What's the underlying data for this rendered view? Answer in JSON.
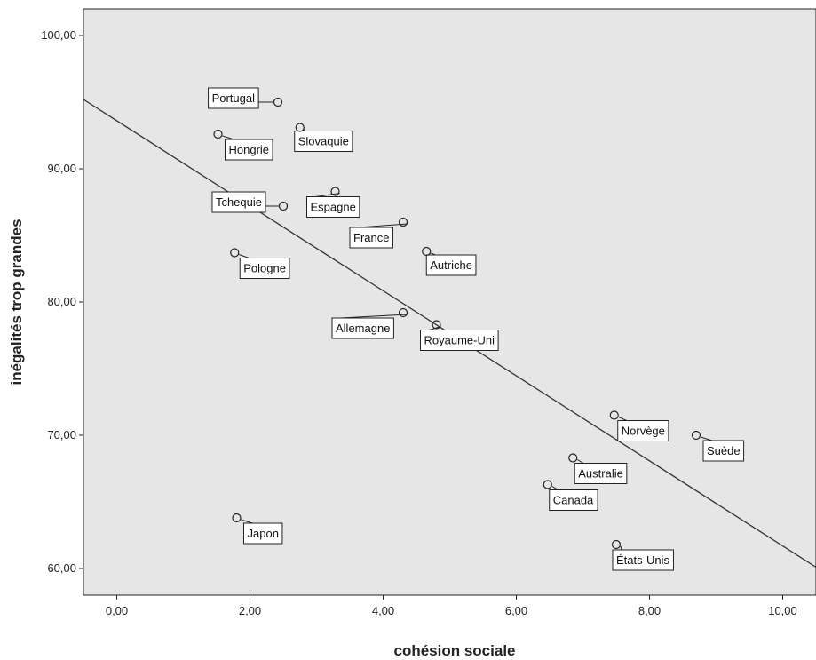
{
  "chart_data": {
    "type": "scatter",
    "title": "",
    "xlabel": "cohésion sociale",
    "ylabel": "inégalités trop grandes",
    "xlim": [
      -0.5,
      10.5
    ],
    "ylim": [
      58.0,
      102.0
    ],
    "x_ticks": [
      0,
      2,
      4,
      6,
      8,
      10
    ],
    "y_ticks": [
      60,
      70,
      80,
      90,
      100
    ],
    "x_tick_labels": [
      "0,00",
      "2,00",
      "4,00",
      "6,00",
      "8,00",
      "10,00"
    ],
    "y_tick_labels": [
      "60,00",
      "70,00",
      "80,00",
      "90,00",
      "100,00"
    ],
    "grid": false,
    "background_color": "#e6e6e6",
    "points": [
      {
        "label": "Portugal",
        "x": 2.42,
        "y": 95.0
      },
      {
        "label": "Hongrie",
        "x": 1.52,
        "y": 92.6
      },
      {
        "label": "Slovaquie",
        "x": 2.75,
        "y": 93.1
      },
      {
        "label": "Tchequie",
        "x": 2.5,
        "y": 87.2
      },
      {
        "label": "Espagne",
        "x": 3.28,
        "y": 88.3
      },
      {
        "label": "France",
        "x": 4.3,
        "y": 86.0
      },
      {
        "label": "Pologne",
        "x": 1.77,
        "y": 83.7
      },
      {
        "label": "Autriche",
        "x": 4.65,
        "y": 83.8
      },
      {
        "label": "Allemagne",
        "x": 4.3,
        "y": 79.2
      },
      {
        "label": "Royaume-Uni",
        "x": 4.8,
        "y": 78.3
      },
      {
        "label": "Norvège",
        "x": 7.47,
        "y": 71.5
      },
      {
        "label": "Suède",
        "x": 8.7,
        "y": 70.0
      },
      {
        "label": "Australie",
        "x": 6.85,
        "y": 68.3
      },
      {
        "label": "Canada",
        "x": 6.47,
        "y": 66.3
      },
      {
        "label": "Japon",
        "x": 1.8,
        "y": 63.8
      },
      {
        "label": "États-Unis",
        "x": 7.5,
        "y": 61.8
      }
    ],
    "fit_line": {
      "x": [
        -0.5,
        10.5
      ],
      "y": [
        95.2,
        60.1
      ]
    }
  }
}
